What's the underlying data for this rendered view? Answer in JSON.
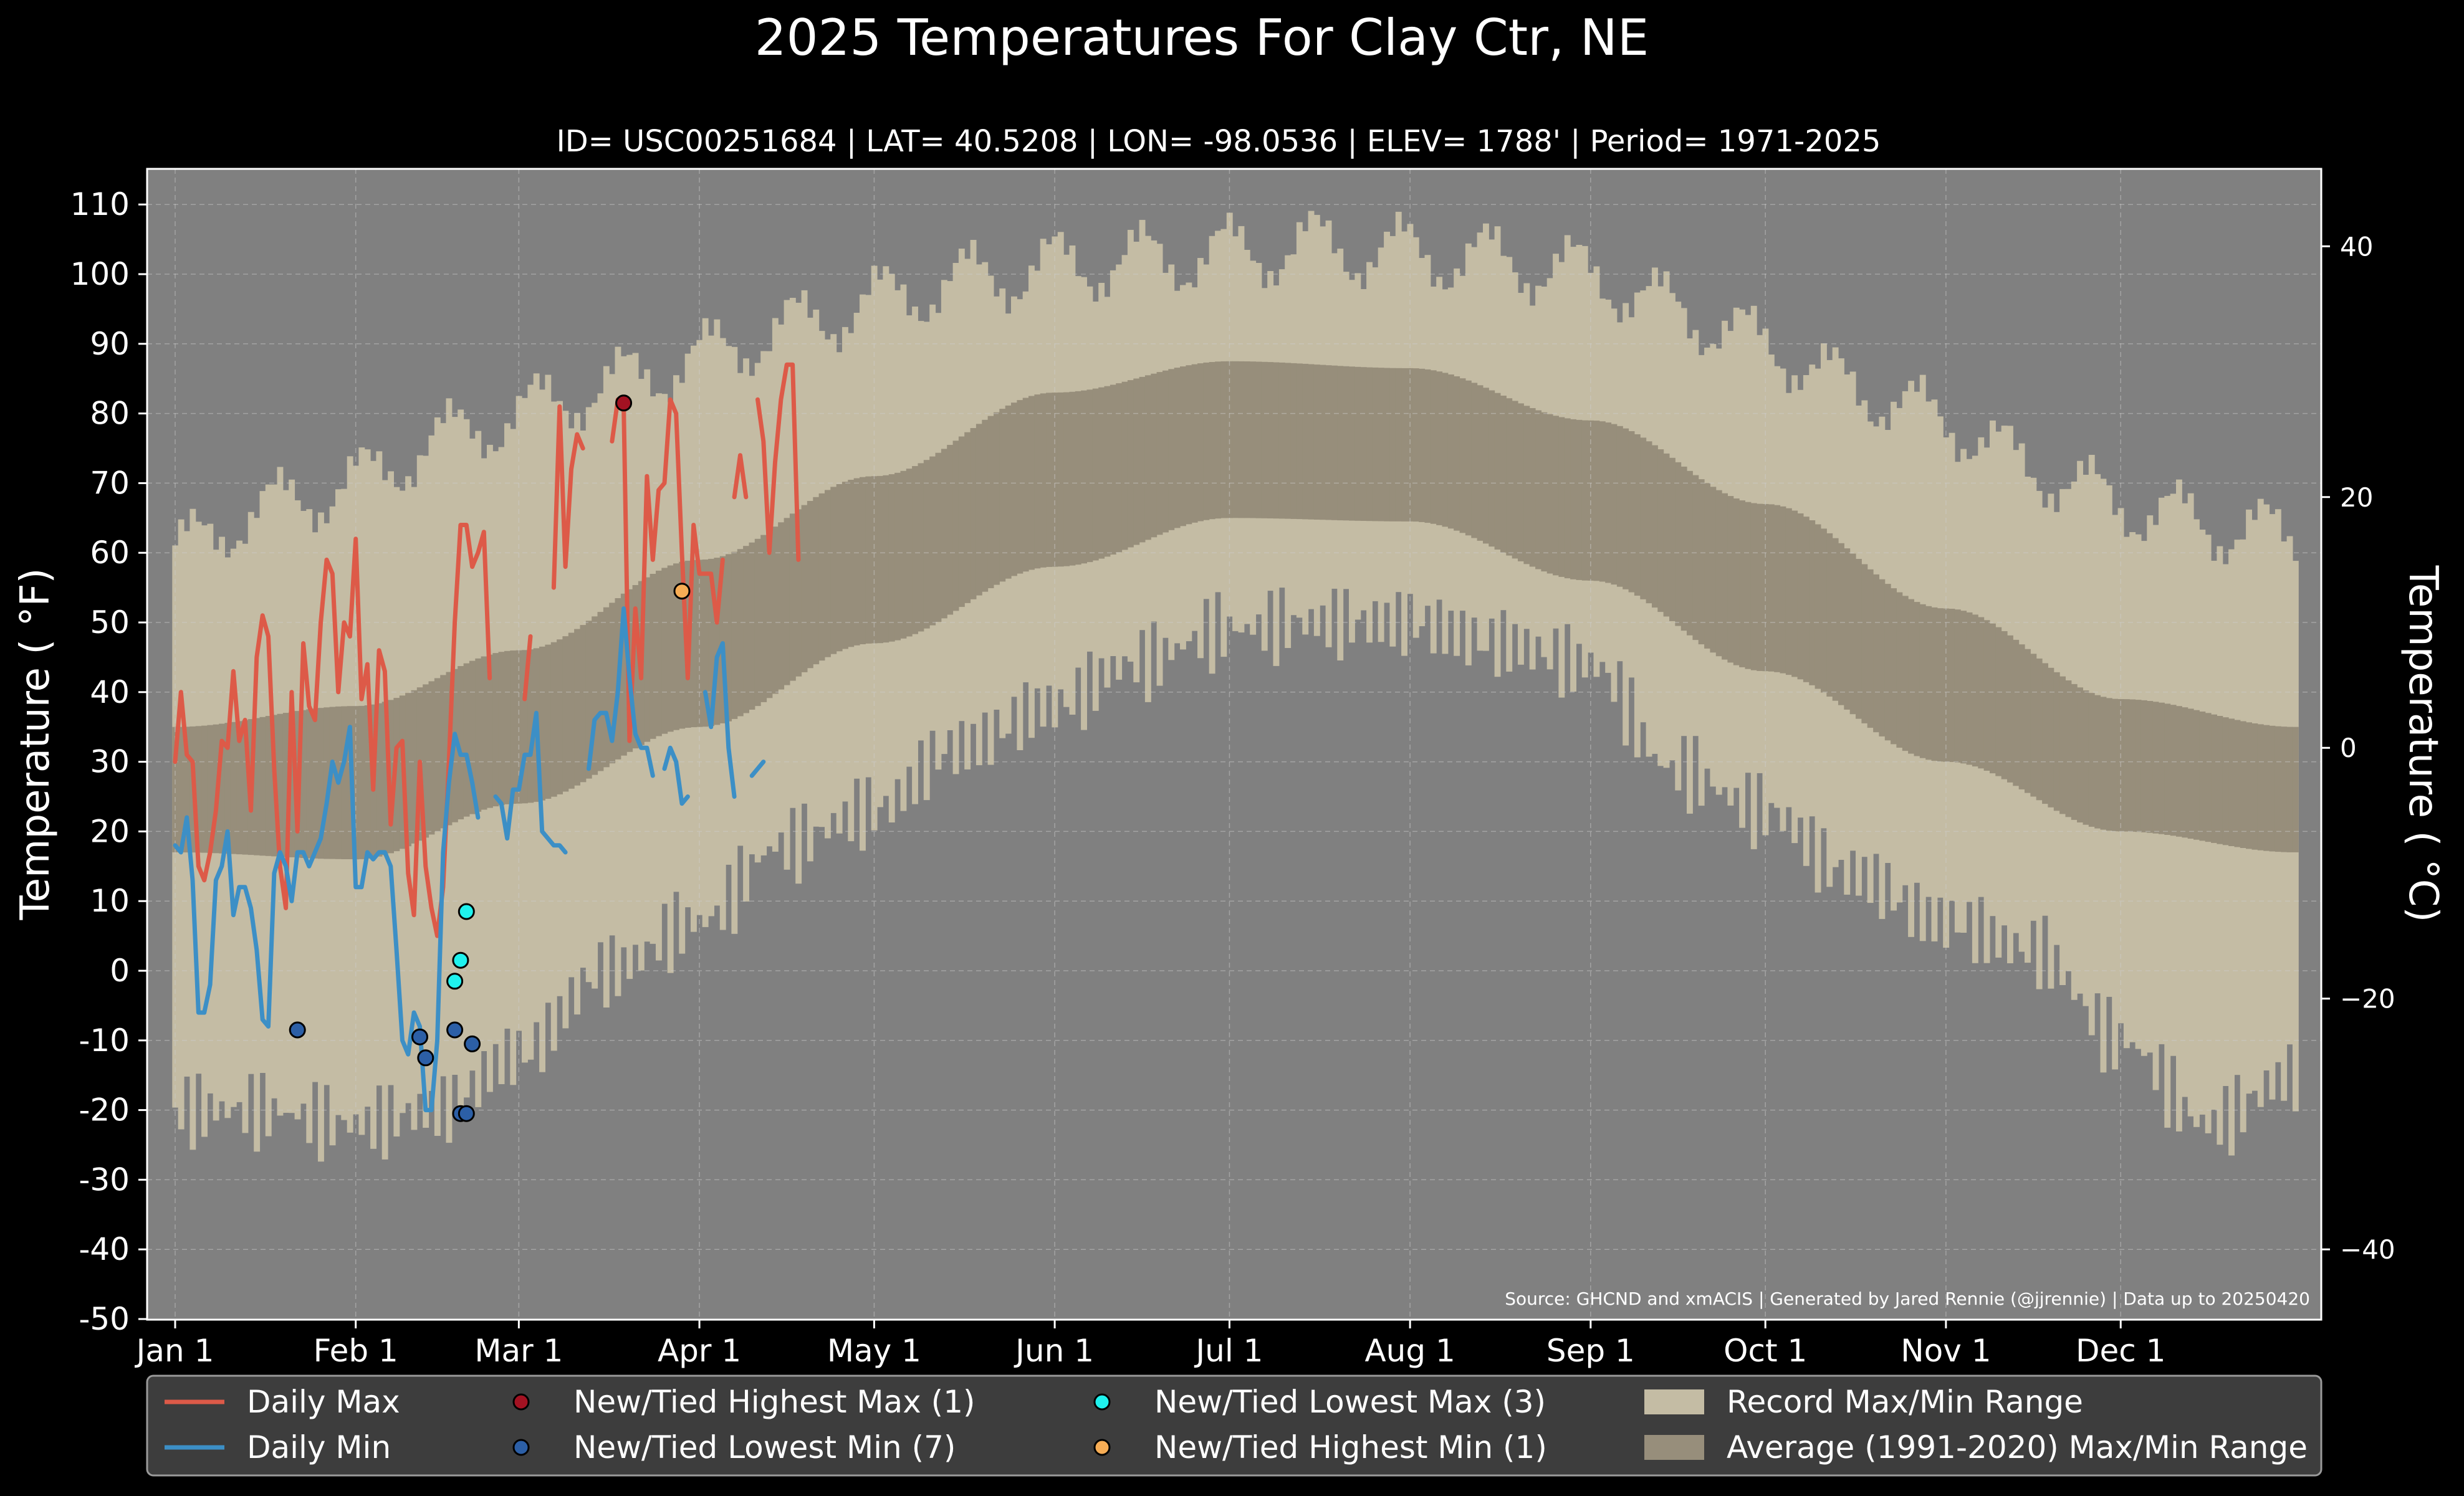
{
  "chart_data": {
    "type": "line",
    "title": "2025 Temperatures For Clay Ctr, NE",
    "subtitle": "ID= USC00251684 | LAT= 40.5208 | LON= -98.0536 | ELEV= 1788' | Period= 1971-2025",
    "ylabel": "Temperature ( °F)",
    "ylabel_right": "Temperature ( °C)",
    "ylim": [
      -50,
      115
    ],
    "yticks": [
      -50,
      -40,
      -30,
      -20,
      -10,
      0,
      10,
      20,
      30,
      40,
      50,
      60,
      70,
      80,
      90,
      100,
      110
    ],
    "yticks_right": [
      -40,
      -20,
      0,
      20,
      40
    ],
    "x_tick_labels": [
      "Jan 1",
      "Feb 1",
      "Mar 1",
      "Apr 1",
      "May 1",
      "Jun 1",
      "Jul 1",
      "Aug 1",
      "Sep 1",
      "Oct 1",
      "Nov 1",
      "Dec 1"
    ],
    "x_tick_days": [
      1,
      32,
      60,
      91,
      121,
      152,
      182,
      213,
      244,
      274,
      305,
      335
    ],
    "grid": true,
    "source_note": "Source: GHCND and xmACIS | Generated by Jared Rennie (@jjrennie) | Data up to 20250420",
    "legend": {
      "placement": "bottom",
      "items": [
        {
          "label": "Daily Max",
          "kind": "line",
          "color": "#dd5a48"
        },
        {
          "label": "Daily Min",
          "kind": "line",
          "color": "#3c8fc6"
        },
        {
          "label": "New/Tied Highest Max (1)",
          "kind": "dot",
          "color": "#a31222"
        },
        {
          "label": "New/Tied Lowest Min (7)",
          "kind": "dot",
          "color": "#2c5fa6"
        },
        {
          "label": "New/Tied Lowest Max (3)",
          "kind": "dot",
          "color": "#1ff2ee"
        },
        {
          "label": "New/Tied Highest Min (1)",
          "kind": "dot",
          "color": "#f7ad55"
        },
        {
          "label": "Record Max/Min Range",
          "kind": "patch",
          "color": "#c4bca4"
        },
        {
          "label": "Average (1991-2020) Max/Min Range",
          "kind": "patch",
          "color": "#978e7b"
        }
      ]
    },
    "colors": {
      "background": "#000000",
      "plot_background": "#808080",
      "record_range": "#c4bca4",
      "average_range": "#978e7b",
      "daily_max": "#dd5a48",
      "daily_min": "#3c8fc6",
      "legend_background": "#3d3d3d"
    },
    "record_max_anchors": [
      [
        1,
        60
      ],
      [
        15,
        66
      ],
      [
        32,
        70
      ],
      [
        46,
        76
      ],
      [
        60,
        80
      ],
      [
        75,
        84
      ],
      [
        91,
        88
      ],
      [
        105,
        92
      ],
      [
        121,
        96
      ],
      [
        135,
        99
      ],
      [
        152,
        101
      ],
      [
        165,
        102
      ],
      [
        182,
        103
      ],
      [
        196,
        104
      ],
      [
        213,
        103
      ],
      [
        228,
        102
      ],
      [
        244,
        100
      ],
      [
        258,
        95
      ],
      [
        274,
        90
      ],
      [
        288,
        84
      ],
      [
        305,
        79
      ],
      [
        320,
        72
      ],
      [
        335,
        67
      ],
      [
        350,
        64
      ],
      [
        365,
        62
      ]
    ],
    "record_min_anchors": [
      [
        1,
        -20
      ],
      [
        15,
        -20
      ],
      [
        32,
        -22
      ],
      [
        46,
        -20
      ],
      [
        60,
        -12
      ],
      [
        75,
        0
      ],
      [
        91,
        7
      ],
      [
        105,
        18
      ],
      [
        121,
        23
      ],
      [
        135,
        32
      ],
      [
        152,
        38
      ],
      [
        165,
        44
      ],
      [
        182,
        49
      ],
      [
        196,
        50
      ],
      [
        213,
        50
      ],
      [
        228,
        47
      ],
      [
        244,
        44
      ],
      [
        258,
        29
      ],
      [
        274,
        23
      ],
      [
        288,
        14
      ],
      [
        305,
        7
      ],
      [
        320,
        3
      ],
      [
        335,
        -10
      ],
      [
        350,
        -22
      ],
      [
        365,
        -15
      ]
    ],
    "average_max_anchors": [
      [
        1,
        35
      ],
      [
        32,
        38
      ],
      [
        60,
        46
      ],
      [
        91,
        59
      ],
      [
        121,
        71
      ],
      [
        152,
        83
      ],
      [
        182,
        87.5
      ],
      [
        213,
        86.5
      ],
      [
        244,
        79
      ],
      [
        274,
        67
      ],
      [
        305,
        52
      ],
      [
        335,
        39
      ],
      [
        365,
        35
      ]
    ],
    "average_min_anchors": [
      [
        1,
        17
      ],
      [
        32,
        16
      ],
      [
        60,
        24
      ],
      [
        91,
        35
      ],
      [
        121,
        47
      ],
      [
        152,
        58
      ],
      [
        182,
        65
      ],
      [
        213,
        64.5
      ],
      [
        244,
        56
      ],
      [
        274,
        43
      ],
      [
        305,
        30
      ],
      [
        335,
        20
      ],
      [
        365,
        17
      ]
    ],
    "series": [
      {
        "name": "Daily Max",
        "x": [
          1,
          2,
          3,
          4,
          5,
          6,
          7,
          8,
          9,
          10,
          11,
          12,
          13,
          14,
          15,
          16,
          17,
          18,
          19,
          20,
          21,
          22,
          23,
          24,
          25,
          26,
          27,
          28,
          29,
          30,
          31,
          32,
          33,
          34,
          35,
          36,
          37,
          38,
          39,
          40,
          41,
          42,
          43,
          44,
          45,
          46,
          47,
          48,
          49,
          50,
          51,
          52,
          53,
          54,
          55,
          56,
          57,
          58,
          59,
          60,
          61,
          62,
          63,
          64,
          null,
          66,
          67,
          68,
          69,
          70,
          71,
          72,
          73,
          74,
          null,
          76,
          77,
          78,
          79,
          80,
          81,
          82,
          83,
          84,
          85,
          86,
          87,
          88,
          89,
          90,
          91,
          92,
          93,
          94,
          95,
          96,
          97,
          98,
          99,
          null,
          101,
          102,
          103,
          104,
          105,
          106,
          107,
          108,
          109,
          110
        ],
        "y": [
          30,
          40,
          31,
          30,
          15,
          13,
          17,
          23,
          33,
          32,
          43,
          33,
          36,
          23,
          45,
          51,
          48,
          29,
          15,
          9,
          40,
          20,
          47,
          38,
          36,
          50,
          59,
          57,
          40,
          50,
          48,
          62,
          39,
          44,
          26,
          46,
          43,
          21,
          32,
          33,
          14,
          8,
          30,
          15,
          9,
          5,
          12,
          30,
          50,
          64,
          64,
          58,
          60,
          63,
          42,
          null,
          null,
          null,
          null,
          null,
          39,
          48,
          null,
          null,
          null,
          55,
          81,
          58,
          72,
          77,
          75,
          null,
          null,
          null,
          null,
          76,
          82,
          81,
          33,
          52,
          42,
          71,
          59,
          69,
          70,
          82,
          80,
          60,
          42,
          64,
          57,
          57,
          57,
          50,
          59,
          null,
          68,
          74,
          68,
          73,
          82,
          76,
          60,
          73,
          82,
          87,
          87,
          59,
          null,
          null
        ]
      },
      {
        "name": "Daily Min",
        "x": [
          1,
          2,
          3,
          4,
          5,
          6,
          7,
          8,
          9,
          10,
          11,
          12,
          13,
          14,
          15,
          16,
          17,
          18,
          19,
          20,
          21,
          22,
          23,
          24,
          25,
          26,
          27,
          28,
          29,
          30,
          31,
          32,
          33,
          34,
          35,
          36,
          37,
          38,
          39,
          40,
          41,
          42,
          43,
          44,
          45,
          46,
          47,
          48,
          49,
          50,
          51,
          52,
          53,
          54,
          55,
          56,
          57,
          58,
          59,
          60,
          61,
          62,
          63,
          64,
          65,
          66,
          67,
          68,
          69,
          70,
          71,
          72,
          73,
          74,
          75,
          76,
          77,
          78,
          79,
          80,
          81,
          82,
          83,
          84,
          85,
          86,
          87,
          88,
          89,
          90,
          91,
          92,
          93,
          94,
          95,
          96,
          97,
          98,
          99,
          100,
          101,
          102,
          103,
          104,
          105,
          106,
          107,
          108,
          109,
          110
        ],
        "y": [
          18,
          17,
          22,
          13,
          -6,
          -6,
          -2,
          13,
          15,
          20,
          8,
          12,
          12,
          9,
          3,
          -7,
          -8,
          14,
          17,
          15,
          10,
          17,
          17,
          15,
          17,
          19,
          24,
          30,
          27,
          30,
          35,
          12,
          12,
          17,
          16,
          17,
          17,
          15,
          3,
          -10,
          -12,
          -6,
          -8,
          -20,
          -20,
          -10,
          17,
          27,
          34,
          31,
          31,
          27,
          22,
          null,
          null,
          25,
          24,
          19,
          26,
          26,
          31,
          31,
          37,
          20,
          19,
          18,
          18,
          17,
          null,
          null,
          null,
          29,
          36,
          37,
          37,
          33,
          40,
          52,
          42,
          34,
          32,
          32,
          28,
          null,
          29,
          32,
          30,
          24,
          25,
          null,
          null,
          40,
          35,
          45,
          47,
          32,
          25,
          null,
          null,
          28,
          29,
          30,
          null,
          null,
          null,
          null,
          null,
          null,
          null,
          null
        ]
      }
    ],
    "records": [
      {
        "type": "New/Tied Highest Max",
        "x": 78,
        "y": 81.5
      },
      {
        "type": "New/Tied Lowest Min",
        "x": 22,
        "y": -8.5
      },
      {
        "type": "New/Tied Lowest Min",
        "x": 43,
        "y": -9.5
      },
      {
        "type": "New/Tied Lowest Min",
        "x": 44,
        "y": -12.5
      },
      {
        "type": "New/Tied Lowest Min",
        "x": 49,
        "y": -8.5
      },
      {
        "type": "New/Tied Lowest Min",
        "x": 52,
        "y": -10.5
      },
      {
        "type": "New/Tied Lowest Min",
        "x": 50,
        "y": -20.5
      },
      {
        "type": "New/Tied Lowest Min",
        "x": 51,
        "y": -20.5
      },
      {
        "type": "New/Tied Lowest Max",
        "x": 49,
        "y": -1.5
      },
      {
        "type": "New/Tied Lowest Max",
        "x": 50,
        "y": 1.5
      },
      {
        "type": "New/Tied Lowest Max",
        "x": 51,
        "y": 8.5
      },
      {
        "type": "New/Tied Highest Min",
        "x": 88,
        "y": 54.5
      }
    ]
  }
}
